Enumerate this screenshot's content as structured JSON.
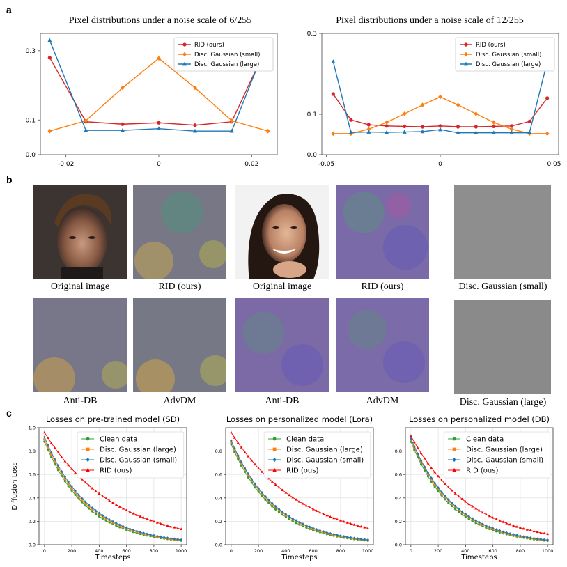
{
  "figure": {
    "panel_a": "a",
    "panel_b": "b",
    "panel_c": "c"
  },
  "section_b": {
    "captions": [
      "Original image",
      "RID (ours)",
      "Original image",
      "RID (ours)",
      "Disc. Gaussian (small)",
      "Anti-DB",
      "AdvDM",
      "Anti-DB",
      "AdvDM",
      "Disc. Gaussian (large)"
    ]
  },
  "chart_data": [
    {
      "type": "line",
      "title": "Pixel distributions under a noise scale of 6/255",
      "xlabel": "",
      "ylabel": "",
      "x": [
        -0.0235,
        -0.0157,
        -0.0078,
        0.0,
        0.0078,
        0.0157,
        0.0235
      ],
      "xlim": [
        -0.0255,
        0.0255
      ],
      "ylim": [
        0.0,
        0.35
      ],
      "xticks": [
        -0.02,
        0,
        0.02
      ],
      "xtick_labels": [
        "-0.02",
        "0",
        "0.02"
      ],
      "yticks": [
        0.0,
        0.1,
        0.3
      ],
      "ytick_labels": [
        "0.0",
        "0.1",
        "0.3"
      ],
      "legend_position": "top-right",
      "series": [
        {
          "name": "RID (ours)",
          "color": "#d62728",
          "marker": "circle",
          "values": [
            0.28,
            0.095,
            0.088,
            0.092,
            0.085,
            0.095,
            0.32
          ]
        },
        {
          "name": "Disc. Gaussian (small)",
          "color": "#ff7f0e",
          "marker": "diamond",
          "values": [
            0.068,
            0.098,
            0.193,
            0.278,
            0.193,
            0.098,
            0.068
          ]
        },
        {
          "name": "Disc. Gaussian (large)",
          "color": "#1f77b4",
          "marker": "triangle",
          "values": [
            0.33,
            0.07,
            0.07,
            0.075,
            0.068,
            0.068,
            0.33
          ]
        }
      ]
    },
    {
      "type": "line",
      "title": "Pixel distributions under a noise scale of 12/255",
      "xlabel": "",
      "ylabel": "",
      "x": [
        -0.047,
        -0.0392,
        -0.0314,
        -0.0235,
        -0.0157,
        -0.0078,
        0.0,
        0.0078,
        0.0157,
        0.0235,
        0.0314,
        0.0392,
        0.047
      ],
      "xlim": [
        -0.052,
        0.052
      ],
      "ylim": [
        0.0,
        0.3
      ],
      "xticks": [
        -0.05,
        0,
        0.05
      ],
      "xtick_labels": [
        "-0.05",
        "0",
        "0.05"
      ],
      "yticks": [
        0.0,
        0.1,
        0.3
      ],
      "ytick_labels": [
        "0.0",
        "0.1",
        "0.3"
      ],
      "legend_position": "top-right",
      "series": [
        {
          "name": "RID (ours)",
          "color": "#d62728",
          "marker": "circle",
          "values": [
            0.15,
            0.086,
            0.074,
            0.071,
            0.07,
            0.069,
            0.071,
            0.069,
            0.069,
            0.07,
            0.071,
            0.082,
            0.14
          ]
        },
        {
          "name": "Disc. Gaussian (small)",
          "color": "#ff7f0e",
          "marker": "diamond",
          "values": [
            0.052,
            0.052,
            0.063,
            0.08,
            0.101,
            0.123,
            0.143,
            0.123,
            0.101,
            0.08,
            0.063,
            0.052,
            0.052
          ]
        },
        {
          "name": "Disc. Gaussian (large)",
          "color": "#1f77b4",
          "marker": "triangle",
          "values": [
            0.23,
            0.055,
            0.056,
            0.055,
            0.056,
            0.057,
            0.062,
            0.054,
            0.054,
            0.054,
            0.054,
            0.054,
            0.23
          ]
        }
      ]
    },
    {
      "type": "line",
      "title": "Losses on pre-trained model (SD)",
      "xlabel": "Timesteps",
      "ylabel": "Diffusion Loss",
      "xlim": [
        -40,
        1040
      ],
      "ylim": [
        0.0,
        1.0
      ],
      "xticks": [
        0,
        200,
        400,
        600,
        800,
        1000
      ],
      "yticks": [
        0.0,
        0.2,
        0.4,
        0.6,
        0.8,
        1.0
      ],
      "legend_position": "top-right",
      "grid": true,
      "curve": {
        "start_x": 0,
        "end_x": 1000,
        "points": 40
      },
      "series": [
        {
          "name": "Clean data",
          "color": "#2ca02c",
          "marker": "circle",
          "start": 0.88,
          "decay": 3.2
        },
        {
          "name": "Disc. Gaussian (large)",
          "color": "#ff7f0e",
          "marker": "square",
          "start": 0.9,
          "decay": 3.1
        },
        {
          "name": "Disc. Gaussian (small)",
          "color": "#1f77b4",
          "marker": "diamond",
          "start": 0.92,
          "decay": 3.05
        },
        {
          "name": "RID (ous)",
          "color": "#ff0000",
          "marker": "triangle",
          "start": 0.96,
          "decay": 1.95
        }
      ]
    },
    {
      "type": "line",
      "title": "Losses on personalized model (Lora)",
      "xlabel": "Timesteps",
      "ylabel": "",
      "xlim": [
        -40,
        1040
      ],
      "ylim": [
        0.0,
        1.0
      ],
      "xticks": [
        0,
        200,
        400,
        600,
        800,
        1000
      ],
      "yticks": [
        0.0,
        0.2,
        0.4,
        0.6,
        0.8
      ],
      "legend_position": "top-right",
      "grid": true,
      "curve": {
        "start_x": 0,
        "end_x": 1000,
        "points": 40
      },
      "series": [
        {
          "name": "Clean data",
          "color": "#2ca02c",
          "marker": "circle",
          "start": 0.86,
          "decay": 3.2
        },
        {
          "name": "Disc. Gaussian (large)",
          "color": "#ff7f0e",
          "marker": "square",
          "start": 0.88,
          "decay": 3.1
        },
        {
          "name": "Disc. Gaussian (small)",
          "color": "#1f77b4",
          "marker": "diamond",
          "start": 0.89,
          "decay": 3.05
        },
        {
          "name": "RID (ous)",
          "color": "#ff0000",
          "marker": "triangle",
          "start": 0.96,
          "decay": 1.9
        }
      ]
    },
    {
      "type": "line",
      "title": "Losses on personalized model (DB)",
      "xlabel": "Timesteps",
      "ylabel": "",
      "xlim": [
        -40,
        1040
      ],
      "ylim": [
        0.0,
        1.0
      ],
      "xticks": [
        0,
        200,
        400,
        600,
        800,
        1000
      ],
      "yticks": [
        0.0,
        0.2,
        0.4,
        0.6,
        0.8
      ],
      "legend_position": "top-right",
      "grid": true,
      "curve": {
        "start_x": 0,
        "end_x": 1000,
        "points": 40
      },
      "series": [
        {
          "name": "Clean data",
          "color": "#2ca02c",
          "marker": "circle",
          "start": 0.88,
          "decay": 3.25
        },
        {
          "name": "Disc. Gaussian (large)",
          "color": "#ff7f0e",
          "marker": "square",
          "start": 0.9,
          "decay": 3.15
        },
        {
          "name": "Disc. Gaussian (small)",
          "color": "#1f77b4",
          "marker": "diamond",
          "start": 0.91,
          "decay": 3.1
        },
        {
          "name": "RID (ous)",
          "color": "#ff0000",
          "marker": "triangle",
          "start": 0.93,
          "decay": 2.3
        }
      ]
    }
  ]
}
